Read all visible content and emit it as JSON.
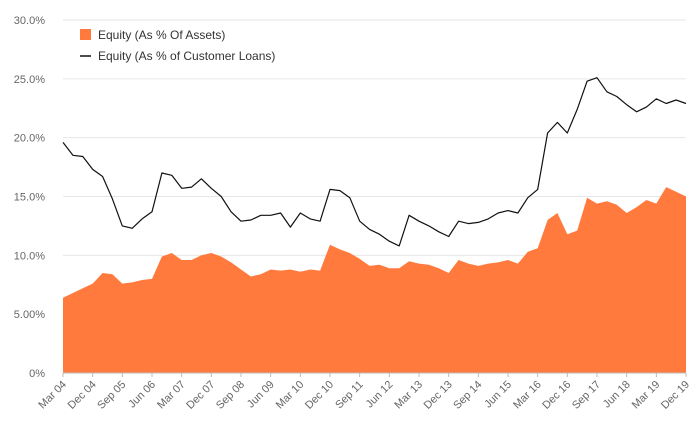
{
  "chart_data": {
    "type": "area",
    "title": "",
    "xlabel": "",
    "ylabel": "",
    "ylim": [
      0,
      30
    ],
    "y_ticks": [
      "0%",
      "5.00%",
      "10.0%",
      "15.0%",
      "20.0%",
      "25.0%",
      "30.0%"
    ],
    "x_tick_labels": [
      "Mar 04",
      "Dec 04",
      "Sep 05",
      "Jun 06",
      "Mar 07",
      "Dec 07",
      "Sep 08",
      "Jun 09",
      "Mar 10",
      "Dec 10",
      "Sep 11",
      "Jun 12",
      "Mar 13",
      "Dec 13",
      "Sep 14",
      "Jun 15",
      "Mar 16",
      "Dec 16",
      "Sep 17",
      "Jun 18",
      "Mar 19",
      "Dec 19"
    ],
    "grid": "horizontal",
    "legend_position": "top-left",
    "x": [
      "Mar 04",
      "Jun 04",
      "Sep 04",
      "Dec 04",
      "Mar 05",
      "Jun 05",
      "Sep 05",
      "Dec 05",
      "Mar 06",
      "Jun 06",
      "Sep 06",
      "Dec 06",
      "Mar 07",
      "Jun 07",
      "Sep 07",
      "Dec 07",
      "Mar 08",
      "Jun 08",
      "Sep 08",
      "Dec 08",
      "Mar 09",
      "Jun 09",
      "Sep 09",
      "Dec 09",
      "Mar 10",
      "Jun 10",
      "Sep 10",
      "Dec 10",
      "Mar 11",
      "Jun 11",
      "Sep 11",
      "Dec 11",
      "Mar 12",
      "Jun 12",
      "Sep 12",
      "Dec 12",
      "Mar 13",
      "Jun 13",
      "Sep 13",
      "Dec 13",
      "Mar 14",
      "Jun 14",
      "Sep 14",
      "Dec 14",
      "Mar 15",
      "Jun 15",
      "Sep 15",
      "Dec 15",
      "Mar 16",
      "Jun 16",
      "Sep 16",
      "Dec 16",
      "Mar 17",
      "Jun 17",
      "Sep 17",
      "Dec 17",
      "Mar 18",
      "Jun 18",
      "Sep 18",
      "Dec 18",
      "Mar 19",
      "Jun 19",
      "Sep 19",
      "Dec 19"
    ],
    "series": [
      {
        "name": "Equity (As % Of Assets)",
        "type": "area",
        "color": "#ff7a3c",
        "values": [
          6.4,
          6.8,
          7.2,
          7.6,
          8.5,
          8.4,
          7.6,
          7.7,
          7.9,
          8.0,
          9.9,
          10.2,
          9.6,
          9.6,
          10.0,
          10.2,
          9.9,
          9.4,
          8.8,
          8.2,
          8.4,
          8.8,
          8.7,
          8.8,
          8.6,
          8.8,
          8.7,
          10.9,
          10.5,
          10.2,
          9.7,
          9.1,
          9.2,
          8.9,
          8.9,
          9.5,
          9.3,
          9.2,
          8.9,
          8.5,
          9.6,
          9.3,
          9.1,
          9.3,
          9.4,
          9.6,
          9.3,
          10.3,
          10.6,
          13.0,
          13.6,
          11.8,
          12.1,
          14.9,
          14.4,
          14.6,
          14.3,
          13.6,
          14.1,
          14.7,
          14.4,
          15.8,
          15.4,
          15.0
        ]
      },
      {
        "name": "Equity (As % of Customer Loans)",
        "type": "line",
        "color": "#111111",
        "values": [
          19.6,
          18.5,
          18.4,
          17.3,
          16.7,
          14.8,
          12.5,
          12.3,
          13.1,
          13.7,
          17.0,
          16.8,
          15.7,
          15.8,
          16.5,
          15.7,
          15.0,
          13.7,
          12.9,
          13.0,
          13.4,
          13.4,
          13.6,
          12.4,
          13.6,
          13.1,
          12.9,
          15.6,
          15.5,
          14.9,
          12.9,
          12.2,
          11.8,
          11.2,
          10.8,
          13.4,
          12.9,
          12.5,
          12.0,
          11.6,
          12.9,
          12.7,
          12.8,
          13.1,
          13.6,
          13.8,
          13.6,
          14.9,
          15.6,
          20.4,
          21.3,
          20.4,
          22.4,
          24.8,
          25.1,
          23.9,
          23.5,
          22.8,
          22.2,
          22.6,
          23.3,
          22.9,
          23.2,
          22.9
        ]
      }
    ]
  }
}
